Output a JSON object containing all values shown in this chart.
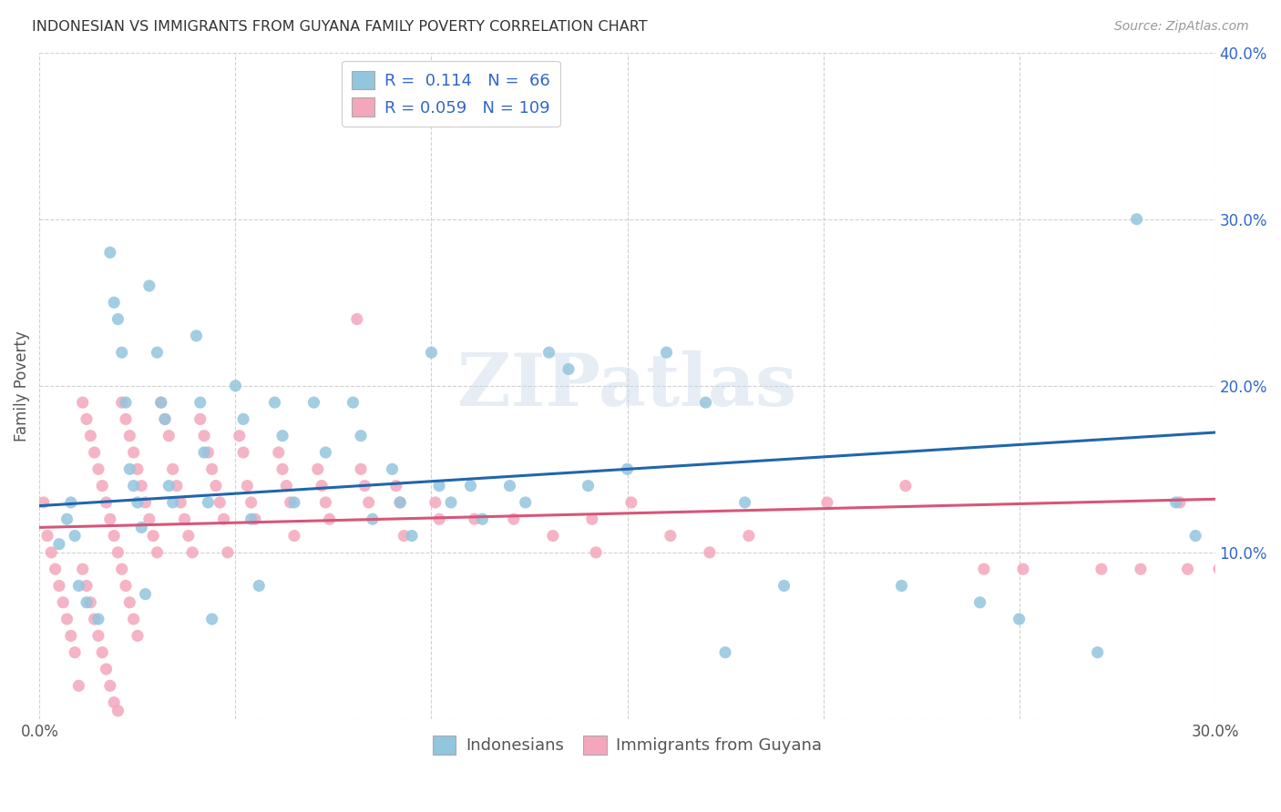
{
  "title": "INDONESIAN VS IMMIGRANTS FROM GUYANA FAMILY POVERTY CORRELATION CHART",
  "source": "Source: ZipAtlas.com",
  "ylabel": "Family Poverty",
  "xlim": [
    0.0,
    0.3
  ],
  "ylim": [
    0.0,
    0.4
  ],
  "indonesian_color": "#92c5de",
  "guyana_color": "#f4a6bc",
  "indonesian_line_color": "#2166ac",
  "guyana_line_color": "#d6567a",
  "indonesian_R": 0.114,
  "indonesian_N": 66,
  "guyana_R": 0.059,
  "guyana_N": 109,
  "watermark": "ZIPatlas",
  "legend_labels": [
    "Indonesians",
    "Immigrants from Guyana"
  ],
  "title_color": "#333333",
  "source_color": "#999999",
  "axis_label_color": "#555555",
  "tick_color": "#3366cc",
  "blue_line_x": [
    0.0,
    0.3
  ],
  "blue_line_y": [
    0.128,
    0.172
  ],
  "pink_line_x": [
    0.0,
    0.3
  ],
  "pink_line_y": [
    0.115,
    0.132
  ],
  "indonesian_x": [
    0.005,
    0.007,
    0.008,
    0.009,
    0.01,
    0.012,
    0.015,
    0.018,
    0.019,
    0.02,
    0.021,
    0.022,
    0.023,
    0.024,
    0.025,
    0.026,
    0.027,
    0.028,
    0.03,
    0.031,
    0.032,
    0.033,
    0.034,
    0.04,
    0.041,
    0.042,
    0.043,
    0.044,
    0.05,
    0.052,
    0.054,
    0.056,
    0.06,
    0.062,
    0.065,
    0.07,
    0.073,
    0.08,
    0.082,
    0.085,
    0.09,
    0.092,
    0.095,
    0.1,
    0.102,
    0.105,
    0.11,
    0.113,
    0.12,
    0.124,
    0.13,
    0.135,
    0.14,
    0.15,
    0.16,
    0.17,
    0.175,
    0.18,
    0.19,
    0.22,
    0.24,
    0.25,
    0.27,
    0.28,
    0.29,
    0.295
  ],
  "indonesian_y": [
    0.105,
    0.12,
    0.13,
    0.11,
    0.08,
    0.07,
    0.06,
    0.28,
    0.25,
    0.24,
    0.22,
    0.19,
    0.15,
    0.14,
    0.13,
    0.115,
    0.075,
    0.26,
    0.22,
    0.19,
    0.18,
    0.14,
    0.13,
    0.23,
    0.19,
    0.16,
    0.13,
    0.06,
    0.2,
    0.18,
    0.12,
    0.08,
    0.19,
    0.17,
    0.13,
    0.19,
    0.16,
    0.19,
    0.17,
    0.12,
    0.15,
    0.13,
    0.11,
    0.22,
    0.14,
    0.13,
    0.14,
    0.12,
    0.14,
    0.13,
    0.22,
    0.21,
    0.14,
    0.15,
    0.22,
    0.19,
    0.04,
    0.13,
    0.08,
    0.08,
    0.07,
    0.06,
    0.04,
    0.3,
    0.13,
    0.11
  ],
  "guyana_x": [
    0.001,
    0.002,
    0.003,
    0.004,
    0.005,
    0.006,
    0.007,
    0.008,
    0.009,
    0.01,
    0.011,
    0.012,
    0.013,
    0.014,
    0.015,
    0.016,
    0.017,
    0.018,
    0.019,
    0.02,
    0.011,
    0.012,
    0.013,
    0.014,
    0.015,
    0.016,
    0.017,
    0.018,
    0.019,
    0.02,
    0.021,
    0.022,
    0.023,
    0.024,
    0.025,
    0.026,
    0.027,
    0.028,
    0.029,
    0.03,
    0.021,
    0.022,
    0.023,
    0.024,
    0.025,
    0.031,
    0.032,
    0.033,
    0.034,
    0.035,
    0.036,
    0.037,
    0.038,
    0.039,
    0.041,
    0.042,
    0.043,
    0.044,
    0.045,
    0.046,
    0.047,
    0.048,
    0.051,
    0.052,
    0.053,
    0.054,
    0.055,
    0.061,
    0.062,
    0.063,
    0.064,
    0.065,
    0.071,
    0.072,
    0.073,
    0.074,
    0.081,
    0.082,
    0.083,
    0.084,
    0.091,
    0.092,
    0.093,
    0.101,
    0.102,
    0.111,
    0.121,
    0.131,
    0.141,
    0.142,
    0.151,
    0.161,
    0.171,
    0.181,
    0.201,
    0.221,
    0.241,
    0.251,
    0.271,
    0.281,
    0.291,
    0.293,
    0.301,
    0.302,
    0.303,
    0.304,
    0.305,
    0.306,
    0.307
  ],
  "guyana_y": [
    0.13,
    0.11,
    0.1,
    0.09,
    0.08,
    0.07,
    0.06,
    0.05,
    0.04,
    0.02,
    0.19,
    0.18,
    0.17,
    0.16,
    0.15,
    0.14,
    0.13,
    0.12,
    0.11,
    0.1,
    0.09,
    0.08,
    0.07,
    0.06,
    0.05,
    0.04,
    0.03,
    0.02,
    0.01,
    0.005,
    0.19,
    0.18,
    0.17,
    0.16,
    0.15,
    0.14,
    0.13,
    0.12,
    0.11,
    0.1,
    0.09,
    0.08,
    0.07,
    0.06,
    0.05,
    0.19,
    0.18,
    0.17,
    0.15,
    0.14,
    0.13,
    0.12,
    0.11,
    0.1,
    0.18,
    0.17,
    0.16,
    0.15,
    0.14,
    0.13,
    0.12,
    0.1,
    0.17,
    0.16,
    0.14,
    0.13,
    0.12,
    0.16,
    0.15,
    0.14,
    0.13,
    0.11,
    0.15,
    0.14,
    0.13,
    0.12,
    0.24,
    0.15,
    0.14,
    0.13,
    0.14,
    0.13,
    0.11,
    0.13,
    0.12,
    0.12,
    0.12,
    0.11,
    0.12,
    0.1,
    0.13,
    0.11,
    0.1,
    0.11,
    0.13,
    0.14,
    0.09,
    0.09,
    0.09,
    0.09,
    0.13,
    0.09,
    0.09,
    0.09,
    0.09,
    0.09,
    0.09,
    0.09,
    0.09
  ]
}
